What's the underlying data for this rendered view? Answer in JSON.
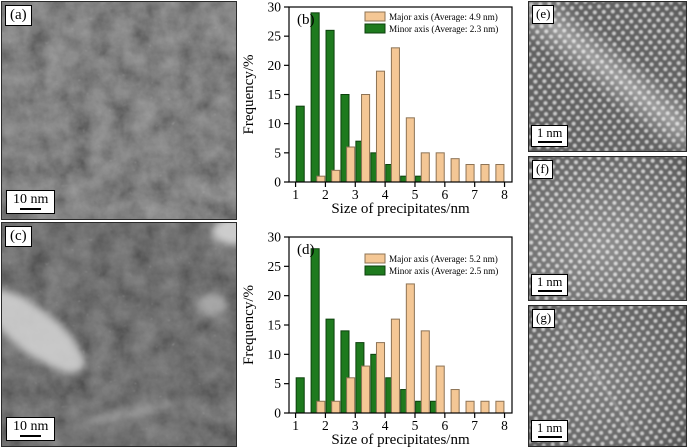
{
  "figure_panels": {
    "a": {
      "label": "(a)",
      "scale_bar": "10 nm"
    },
    "c": {
      "label": "(c)",
      "scale_bar": "10 nm"
    },
    "e": {
      "label": "(e)",
      "scale_bar": "1 nm"
    },
    "f": {
      "label": "(f)",
      "scale_bar": "1 nm"
    },
    "g": {
      "label": "(g)",
      "scale_bar": "1 nm"
    }
  },
  "chart_data": [
    {
      "id": "b",
      "type": "bar",
      "panel_label": "(b)",
      "xlabel": "Size of precipitates/nm",
      "ylabel": "Frequency/%",
      "xlim": [
        0.78,
        8.25
      ],
      "ylim": [
        0,
        30
      ],
      "xticks": [
        1,
        2,
        3,
        4,
        5,
        6,
        7,
        8
      ],
      "yticks": [
        0,
        5,
        10,
        15,
        20,
        25,
        30
      ],
      "grid": false,
      "legend_position": "top-right",
      "bin_centers": [
        1,
        1.5,
        2,
        2.5,
        3,
        3.5,
        4,
        4.5,
        5,
        5.5,
        6,
        6.5,
        7,
        7.5,
        8
      ],
      "series": [
        {
          "name": "Major axis (Average: 4.9 nm)",
          "fill": "#f4c795",
          "border": "#8d7355",
          "values": [
            0,
            0,
            1,
            2,
            6,
            15,
            19,
            23,
            11,
            5,
            5,
            4,
            3,
            3,
            3
          ]
        },
        {
          "name": "Minor axis (Average: 2.3 nm)",
          "fill": "#1e7a1e",
          "border": "#0c400c",
          "values": [
            13,
            29,
            26,
            15,
            7,
            5,
            3,
            1,
            1,
            0,
            0,
            0,
            0,
            0,
            0
          ]
        }
      ]
    },
    {
      "id": "d",
      "type": "bar",
      "panel_label": "(d)",
      "xlabel": "Size of precipitates/nm",
      "ylabel": "Frequency/%",
      "xlim": [
        0.78,
        8.25
      ],
      "ylim": [
        0,
        30
      ],
      "xticks": [
        1,
        2,
        3,
        4,
        5,
        6,
        7,
        8
      ],
      "yticks": [
        0,
        5,
        10,
        15,
        20,
        25,
        30
      ],
      "grid": false,
      "legend_position": "top-right",
      "bin_centers": [
        1,
        1.5,
        2,
        2.5,
        3,
        3.5,
        4,
        4.5,
        5,
        5.5,
        6,
        6.5,
        7,
        7.5,
        8
      ],
      "series": [
        {
          "name": "Major axis (Average: 5.2 nm)",
          "fill": "#f4c795",
          "border": "#8d7355",
          "values": [
            0,
            0,
            2,
            2,
            6,
            8,
            12,
            16,
            22,
            14,
            8,
            4,
            2,
            2,
            2
          ]
        },
        {
          "name": "Minor axis (Average: 2.5 nm)",
          "fill": "#1e7a1e",
          "border": "#0c400c",
          "values": [
            6,
            28,
            16,
            14,
            12,
            10,
            6,
            4,
            2,
            2,
            0,
            0,
            0,
            0,
            0
          ]
        }
      ]
    }
  ],
  "colors": {
    "axis": "#000000",
    "background": "#ffffff"
  }
}
